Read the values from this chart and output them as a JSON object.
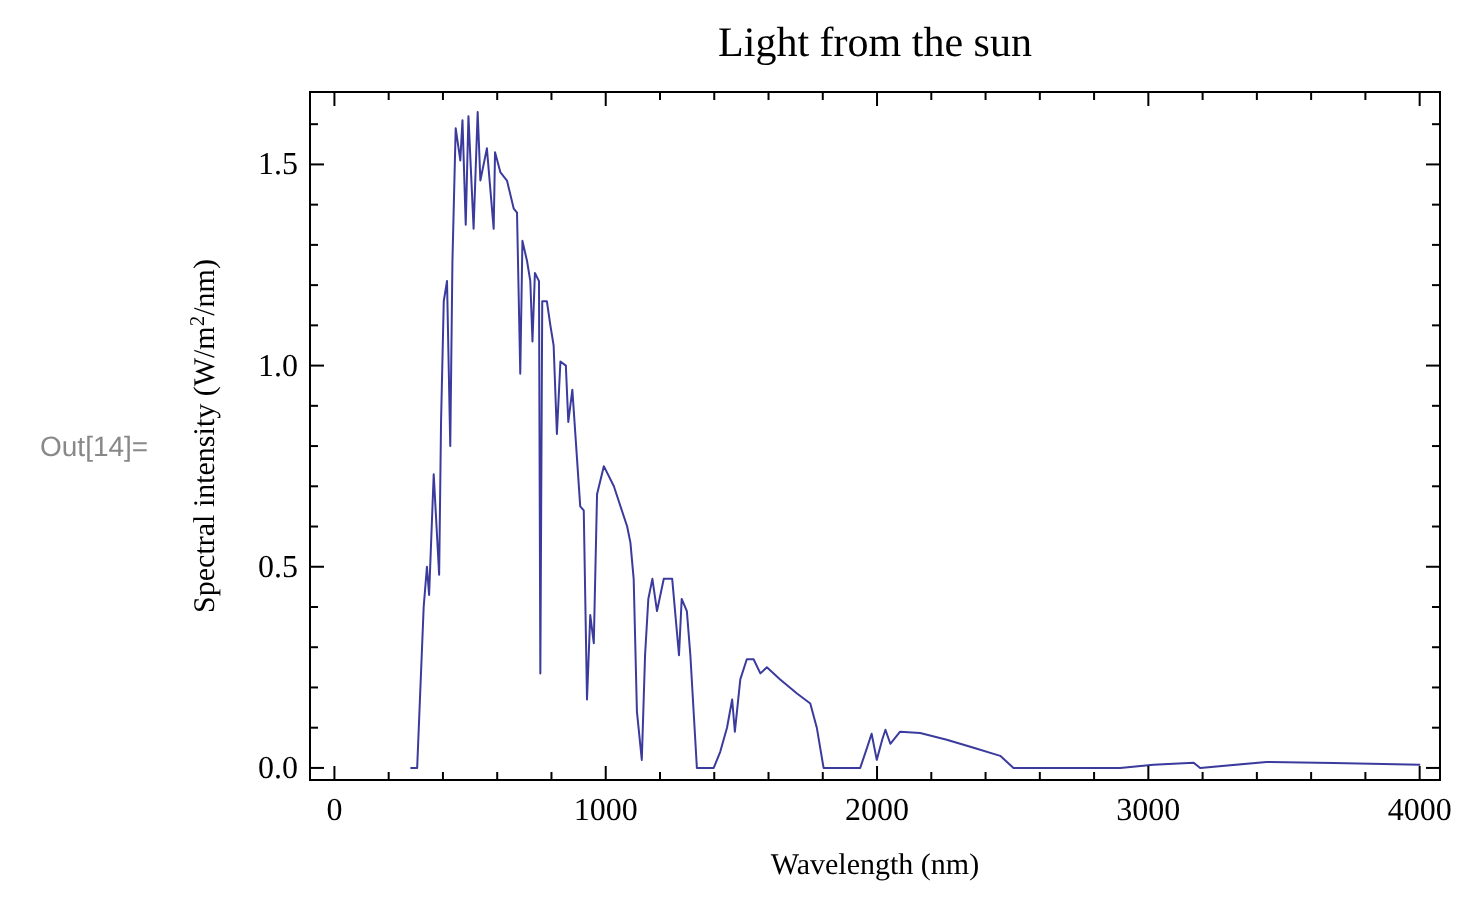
{
  "chart_data": {
    "type": "line",
    "title": "Light from the sun",
    "xlabel": "Wavelength (nm)",
    "ylabel": "Spectral intensity (W/m$^{2}$/nm)",
    "annotations": [
      "Out[14]="
    ],
    "x": [
      280,
      305,
      329,
      341,
      349,
      366,
      386,
      393,
      403,
      415,
      427,
      435,
      447,
      464,
      472,
      484,
      494,
      513,
      528,
      538,
      562,
      587,
      592,
      612,
      636,
      661,
      673,
      685,
      693,
      710,
      722,
      730,
      739,
      754,
      759,
      766,
      783,
      796,
      808,
      820,
      833,
      853,
      862,
      877,
      894,
      906,
      919,
      931,
      943,
      956,
      968,
      993,
      1030,
      1079,
      1091,
      1103,
      1115,
      1133,
      1145,
      1157,
      1172,
      1189,
      1214,
      1245,
      1270,
      1280,
      1299,
      1312,
      1336,
      1398,
      1422,
      1447,
      1466,
      1476,
      1496,
      1520,
      1545,
      1570,
      1594,
      1643,
      1705,
      1754,
      1778,
      1803,
      1938,
      1963,
      1980,
      1999,
      2019,
      2031,
      2049,
      2085,
      2159,
      2257,
      2356,
      2454,
      2503,
      2749,
      2896,
      3019,
      3167,
      3191,
      3436,
      3682,
      4002
    ],
    "series": [
      {
        "color": "#3b3b9e",
        "values": [
          0,
          0,
          0.4,
          0.5,
          0.43,
          0.73,
          0.48,
          0.86,
          1.16,
          1.21,
          0.8,
          1.26,
          1.59,
          1.51,
          1.61,
          1.35,
          1.62,
          1.34,
          1.63,
          1.46,
          1.54,
          1.34,
          1.53,
          1.48,
          1.46,
          1.39,
          1.38,
          0.98,
          1.31,
          1.26,
          1.21,
          1.06,
          1.23,
          1.21,
          0.235,
          1.16,
          1.16,
          1.1,
          1.05,
          0.83,
          1.01,
          1.0,
          0.86,
          0.94,
          0.77,
          0.65,
          0.64,
          0.17,
          0.38,
          0.31,
          0.68,
          0.75,
          0.7,
          0.6,
          0.56,
          0.47,
          0.14,
          0.02,
          0.28,
          0.42,
          0.47,
          0.39,
          0.47,
          0.47,
          0.28,
          0.42,
          0.39,
          0.28,
          0,
          0,
          0.04,
          0.1,
          0.17,
          0.09,
          0.22,
          0.27,
          0.27,
          0.235,
          0.25,
          0.22,
          0.185,
          0.16,
          0.1,
          0,
          0,
          0.05,
          0.085,
          0.02,
          0.07,
          0.095,
          0.06,
          0.09,
          0.087,
          0.07,
          0.05,
          0.03,
          0,
          0,
          0,
          0.008,
          0.013,
          0,
          0.015,
          0.012,
          0.008
        ]
      }
    ],
    "xlim": [
      -90,
      4075
    ],
    "ylim": [
      -0.03,
      1.68
    ],
    "xticks": [
      0,
      {
        "value": 200,
        "label": null
      },
      {
        "value": 400,
        "label": null
      },
      {
        "value": 600,
        "label": null
      },
      {
        "value": 800,
        "label": null
      },
      1000,
      {
        "value": 1200,
        "label": null
      },
      {
        "value": 1400,
        "label": null
      },
      {
        "value": 1600,
        "label": null
      },
      {
        "value": 1800,
        "label": null
      },
      2000,
      {
        "value": 2200,
        "label": null
      },
      {
        "value": 2400,
        "label": null
      },
      {
        "value": 2600,
        "label": null
      },
      {
        "value": 2800,
        "label": null
      },
      3000,
      {
        "value": 3200,
        "label": null
      },
      {
        "value": 3400,
        "label": null
      },
      {
        "value": 3600,
        "label": null
      },
      {
        "value": 3800,
        "label": null
      },
      4000
    ],
    "yticks": [
      {
        "value": 0,
        "label": "0.0"
      },
      {
        "value": 0.1,
        "label": null
      },
      {
        "value": 0.2,
        "label": null
      },
      {
        "value": 0.3,
        "label": null
      },
      {
        "value": 0.4,
        "label": null
      },
      0.5,
      {
        "value": 0.6,
        "label": null
      },
      {
        "value": 0.7,
        "label": null
      },
      {
        "value": 0.8,
        "label": null
      },
      {
        "value": 0.9,
        "label": null
      },
      {
        "value": 1,
        "label": "1.0"
      },
      {
        "value": 1.1,
        "label": null
      },
      {
        "value": 1.2,
        "label": null
      },
      {
        "value": 1.3,
        "label": null
      },
      {
        "value": 1.4,
        "label": null
      },
      1.5,
      {
        "value": 1.6,
        "label": null
      }
    ],
    "grid": false,
    "line_style": "solid"
  }
}
